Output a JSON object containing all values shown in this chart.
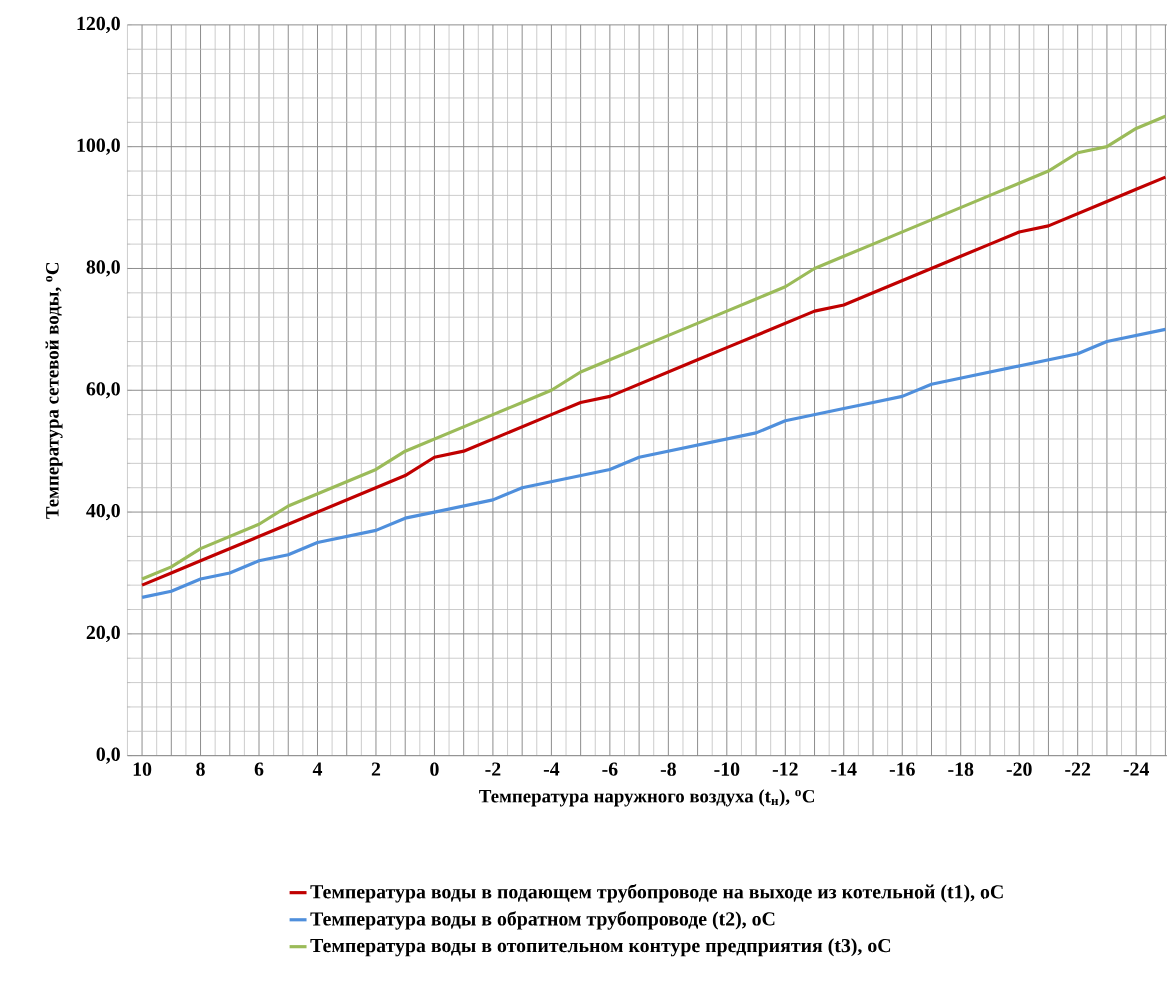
{
  "chart_data": {
    "type": "line",
    "xlabel": "Температура наружного воздуха (t$_{н}$), $^{o}$C",
    "ylabel": "Температура сетевой воды, $^{o}$С",
    "categories": [
      "10",
      null,
      "8",
      null,
      "6",
      null,
      "4",
      null,
      "2",
      null,
      "0",
      null,
      "-2",
      null,
      "-4",
      null,
      "-6",
      null,
      "-8",
      null,
      "-10",
      null,
      "-12",
      null,
      "-14",
      null,
      "-16",
      null,
      "-18",
      null,
      "-20",
      null,
      "-22",
      null,
      "-24",
      null
    ],
    "series": [
      {
        "name": "Температура воды в подающем трубопроводе на выходе из котельной (t1), оС",
        "color": "#c00000",
        "values": [
          28,
          30,
          32,
          34,
          36,
          38,
          40,
          42,
          44,
          46,
          49,
          50,
          52,
          54,
          56,
          58,
          59,
          61,
          63,
          65,
          67,
          69,
          71,
          73,
          74,
          76,
          78,
          80,
          82,
          84,
          86,
          87,
          89,
          91,
          93,
          95
        ]
      },
      {
        "name": "Температура воды в обратном трубопроводе (t2), оС",
        "color": "#4f8fdc",
        "values": [
          26,
          27,
          29,
          30,
          32,
          33,
          35,
          36,
          37,
          39,
          40,
          41,
          42,
          44,
          45,
          46,
          47,
          49,
          50,
          51,
          52,
          53,
          55,
          56,
          57,
          58,
          59,
          61,
          62,
          63,
          64,
          65,
          66,
          68,
          69,
          70
        ]
      },
      {
        "name": "Температура воды в отопительном контуре предприятия (t3), оС",
        "color": "#9bbb59",
        "values": [
          29,
          31,
          34,
          36,
          38,
          41,
          43,
          45,
          47,
          50,
          52,
          54,
          56,
          58,
          60,
          63,
          65,
          67,
          69,
          71,
          73,
          75,
          77,
          80,
          82,
          84,
          86,
          88,
          90,
          92,
          94,
          96,
          99,
          100,
          103,
          105
        ]
      }
    ],
    "ylim": [
      0,
      120
    ],
    "yticks": [
      {
        "value": 0,
        "label": "0,0"
      },
      {
        "value": 20,
        "label": "20,0"
      },
      {
        "value": 40,
        "label": "40,0"
      },
      {
        "value": 60,
        "label": "60,0"
      },
      {
        "value": 80,
        "label": "80,0"
      },
      {
        "value": 100,
        "label": "100,0"
      },
      {
        "value": 120,
        "label": "120,0"
      }
    ],
    "grid": true,
    "legend": "bottom"
  }
}
